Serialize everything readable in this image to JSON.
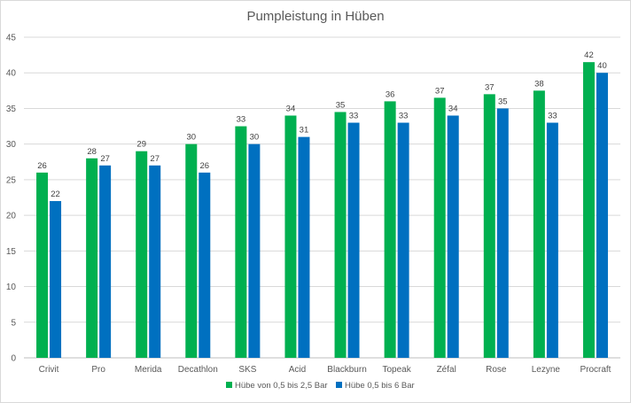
{
  "chart_data": {
    "type": "bar",
    "title": "Pumpleistung in Hüben",
    "xlabel": "",
    "ylabel": "",
    "ylim": [
      0,
      45
    ],
    "yticks": [
      0,
      5,
      10,
      15,
      20,
      25,
      30,
      35,
      40,
      45
    ],
    "grid": true,
    "legend_position": "bottom",
    "categories": [
      "Crivit",
      "Pro",
      "Merida",
      "Decathlon",
      "SKS",
      "Acid",
      "Blackburn",
      "Topeak",
      "Zéfal",
      "Rose",
      "Lezyne",
      "Procraft"
    ],
    "series": [
      {
        "name": "Hübe von 0,5 bis 2,5 Bar",
        "color": "#00b050",
        "values": [
          26,
          28,
          29,
          30,
          32.5,
          34,
          34.5,
          36,
          36.5,
          37,
          37.5,
          41.5
        ],
        "labels": [
          "26",
          "28",
          "29",
          "30",
          "33",
          "34",
          "35",
          "36",
          "37",
          "37",
          "38",
          "42"
        ]
      },
      {
        "name": "Hübe 0,5 bis 6 Bar",
        "color": "#0070c0",
        "values": [
          22,
          27,
          27,
          26,
          30,
          31,
          33,
          33,
          34,
          35,
          33,
          40
        ],
        "labels": [
          "22",
          "27",
          "27",
          "26",
          "30",
          "31",
          "33",
          "33",
          "34",
          "35",
          "33",
          "40"
        ]
      }
    ]
  }
}
